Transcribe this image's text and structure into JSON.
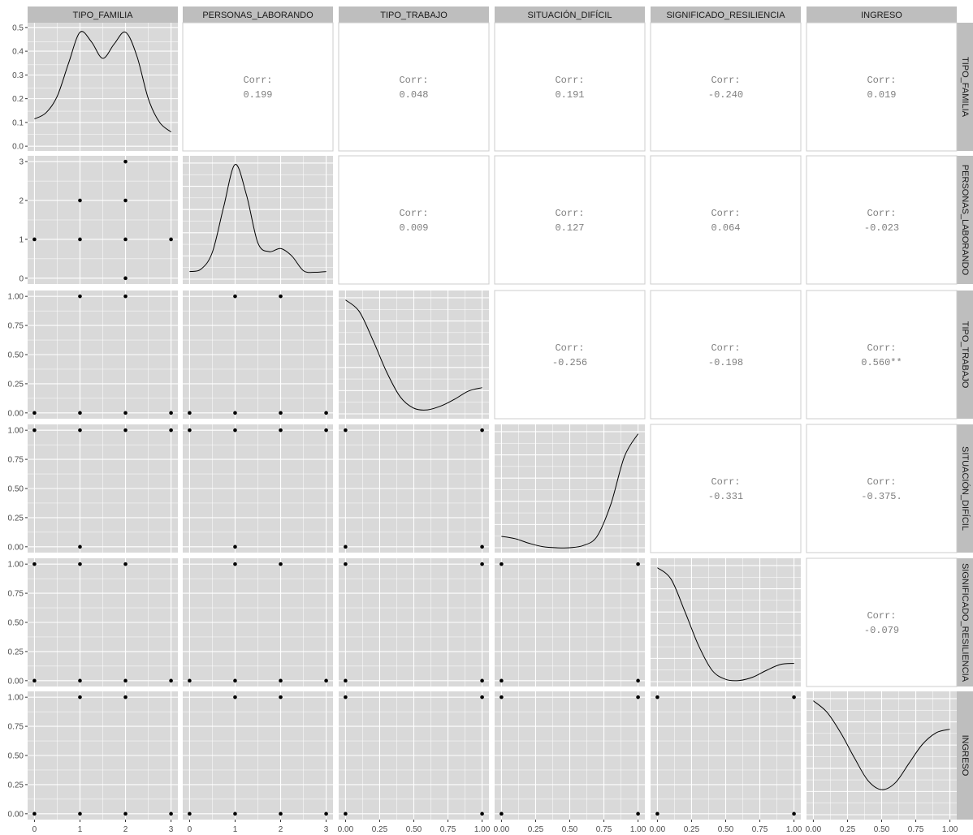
{
  "chart_data": {
    "type": "scatter",
    "variables": [
      "TIPO_FAMILIA",
      "PERSONAS_LABORANDO",
      "TIPO_TRABAJO",
      "SITUACIÓN_DIFÍCIL",
      "SIGNIFICADO_RESILIENCIA",
      "INGRESO"
    ],
    "corr_label": "Corr:",
    "correlations": [
      {
        "row": 0,
        "col": 1,
        "value": "0.199"
      },
      {
        "row": 0,
        "col": 2,
        "value": "0.048"
      },
      {
        "row": 0,
        "col": 3,
        "value": "0.191"
      },
      {
        "row": 0,
        "col": 4,
        "value": "-0.240"
      },
      {
        "row": 0,
        "col": 5,
        "value": "0.019"
      },
      {
        "row": 1,
        "col": 2,
        "value": "0.009"
      },
      {
        "row": 1,
        "col": 3,
        "value": "0.127"
      },
      {
        "row": 1,
        "col": 4,
        "value": "0.064"
      },
      {
        "row": 1,
        "col": 5,
        "value": "-0.023"
      },
      {
        "row": 2,
        "col": 3,
        "value": "-0.256"
      },
      {
        "row": 2,
        "col": 4,
        "value": "-0.198"
      },
      {
        "row": 2,
        "col": 5,
        "value": "0.560**"
      },
      {
        "row": 3,
        "col": 4,
        "value": "-0.331"
      },
      {
        "row": 3,
        "col": 5,
        "value": "-0.375."
      },
      {
        "row": 4,
        "col": 5,
        "value": "-0.079"
      }
    ],
    "x_ranges": [
      [
        -0.15,
        3.15
      ],
      [
        -0.15,
        3.15
      ],
      [
        -0.05,
        1.05
      ],
      [
        -0.05,
        1.05
      ],
      [
        -0.05,
        1.05
      ],
      [
        -0.05,
        1.05
      ]
    ],
    "x_ticks": [
      [
        "0",
        "1",
        "2",
        "3"
      ],
      [
        "0",
        "1",
        "2",
        "3"
      ],
      [
        "0.00",
        "0.25",
        "0.50",
        "0.75",
        "1.00"
      ],
      [
        "0.00",
        "0.25",
        "0.50",
        "0.75",
        "1.00"
      ],
      [
        "0.00",
        "0.25",
        "0.50",
        "0.75",
        "1.00"
      ],
      [
        "0.00",
        "0.25",
        "0.50",
        "0.75",
        "1.00"
      ]
    ],
    "y_ranges": [
      [
        -0.02,
        0.52
      ],
      [
        -0.15,
        3.15
      ],
      [
        -0.05,
        1.05
      ],
      [
        -0.05,
        1.05
      ],
      [
        -0.05,
        1.05
      ],
      [
        -0.05,
        1.05
      ]
    ],
    "y_ticks": [
      [
        "0.0",
        "0.1",
        "0.2",
        "0.3",
        "0.4",
        "0.5"
      ],
      [
        "0",
        "1",
        "2",
        "3"
      ],
      [
        "0.00",
        "0.25",
        "0.50",
        "0.75",
        "1.00"
      ],
      [
        "0.00",
        "0.25",
        "0.50",
        "0.75",
        "1.00"
      ],
      [
        "0.00",
        "0.25",
        "0.50",
        "0.75",
        "1.00"
      ],
      [
        "0.00",
        "0.25",
        "0.50",
        "0.75",
        "1.00"
      ]
    ],
    "densities": [
      {
        "var": 0,
        "x": [
          0,
          0.25,
          0.5,
          0.75,
          1,
          1.25,
          1.5,
          1.75,
          2,
          2.25,
          2.5,
          2.75,
          3
        ],
        "y": [
          0.115,
          0.14,
          0.21,
          0.35,
          0.48,
          0.44,
          0.37,
          0.43,
          0.48,
          0.38,
          0.2,
          0.1,
          0.06
        ]
      },
      {
        "var": 1,
        "x": [
          0,
          0.25,
          0.5,
          0.75,
          1,
          1.25,
          1.5,
          1.75,
          2,
          2.25,
          2.5,
          2.75,
          3
        ],
        "y": [
          0.2,
          0.26,
          0.7,
          1.9,
          3.0,
          2.2,
          0.95,
          0.72,
          0.8,
          0.6,
          0.22,
          0.18,
          0.2
        ]
      },
      {
        "var": 2,
        "x": [
          0,
          0.1,
          0.2,
          0.3,
          0.4,
          0.5,
          0.6,
          0.7,
          0.8,
          0.9,
          1
        ],
        "y": [
          1.0,
          0.9,
          0.65,
          0.37,
          0.15,
          0.05,
          0.035,
          0.07,
          0.13,
          0.2,
          0.23
        ]
      },
      {
        "var": 3,
        "x": [
          0,
          0.1,
          0.2,
          0.3,
          0.4,
          0.5,
          0.6,
          0.7,
          0.8,
          0.9,
          1
        ],
        "y": [
          0.1,
          0.08,
          0.04,
          0.01,
          0.0,
          0.0,
          0.02,
          0.1,
          0.38,
          0.8,
          1.0
        ]
      },
      {
        "var": 4,
        "x": [
          0,
          0.1,
          0.2,
          0.3,
          0.4,
          0.5,
          0.6,
          0.7,
          0.8,
          0.9,
          1
        ],
        "y": [
          1.0,
          0.9,
          0.62,
          0.32,
          0.1,
          0.02,
          0.01,
          0.04,
          0.1,
          0.15,
          0.16
        ]
      },
      {
        "var": 5,
        "x": [
          0,
          0.1,
          0.2,
          0.3,
          0.4,
          0.5,
          0.6,
          0.7,
          0.8,
          0.9,
          1
        ],
        "y": [
          1.0,
          0.9,
          0.72,
          0.5,
          0.3,
          0.22,
          0.28,
          0.45,
          0.62,
          0.72,
          0.75
        ]
      }
    ],
    "scatter_points": [
      {
        "row": 1,
        "col": 0,
        "x": [
          0,
          1,
          1,
          2,
          2,
          2,
          2,
          3
        ],
        "y": [
          1,
          1,
          2,
          0,
          1,
          2,
          3,
          1
        ]
      },
      {
        "row": 2,
        "col": 0,
        "x": [
          0,
          1,
          2,
          3,
          1,
          2
        ],
        "y": [
          0,
          0,
          0,
          0,
          1,
          1
        ]
      },
      {
        "row": 2,
        "col": 1,
        "x": [
          0,
          1,
          2,
          3,
          1,
          2
        ],
        "y": [
          0,
          0,
          0,
          0,
          1,
          1
        ]
      },
      {
        "row": 3,
        "col": 0,
        "x": [
          0,
          1,
          2,
          3,
          1
        ],
        "y": [
          1,
          1,
          1,
          1,
          0
        ]
      },
      {
        "row": 3,
        "col": 1,
        "x": [
          0,
          1,
          2,
          3,
          1
        ],
        "y": [
          1,
          1,
          1,
          1,
          0
        ]
      },
      {
        "row": 3,
        "col": 2,
        "x": [
          0,
          0,
          1,
          1
        ],
        "y": [
          0,
          1,
          0,
          1
        ]
      },
      {
        "row": 4,
        "col": 0,
        "x": [
          0,
          1,
          2,
          0,
          1,
          2,
          3
        ],
        "y": [
          1,
          1,
          1,
          0,
          0,
          0,
          0
        ]
      },
      {
        "row": 4,
        "col": 1,
        "x": [
          0,
          1,
          2,
          3,
          1,
          2
        ],
        "y": [
          0,
          0,
          0,
          0,
          1,
          1
        ]
      },
      {
        "row": 4,
        "col": 2,
        "x": [
          0,
          0,
          1,
          1
        ],
        "y": [
          0,
          1,
          0,
          1
        ]
      },
      {
        "row": 4,
        "col": 3,
        "x": [
          0,
          0,
          1,
          1
        ],
        "y": [
          0,
          1,
          0,
          1
        ]
      },
      {
        "row": 5,
        "col": 0,
        "x": [
          0,
          1,
          2,
          3,
          1,
          2
        ],
        "y": [
          0,
          0,
          0,
          0,
          1,
          1
        ]
      },
      {
        "row": 5,
        "col": 1,
        "x": [
          0,
          1,
          2,
          3,
          1,
          2
        ],
        "y": [
          0,
          0,
          0,
          0,
          1,
          1
        ]
      },
      {
        "row": 5,
        "col": 2,
        "x": [
          0,
          0,
          1,
          1
        ],
        "y": [
          0,
          1,
          0,
          1
        ]
      },
      {
        "row": 5,
        "col": 3,
        "x": [
          0,
          0,
          1,
          1
        ],
        "y": [
          0,
          1,
          0,
          1
        ]
      },
      {
        "row": 5,
        "col": 4,
        "x": [
          0,
          0,
          1,
          1
        ],
        "y": [
          0,
          1,
          0,
          1
        ]
      }
    ],
    "density_ymax": [
      0.5,
      3.1,
      1.04,
      1.04,
      1.04,
      1.04
    ],
    "grid": true,
    "colors": {
      "panel_bg": "#d9d9d9",
      "grid": "#ffffff",
      "strip_bg": "#bebebe",
      "point": "#000000",
      "line": "#000000",
      "corr_text": "#7f7f7f"
    }
  }
}
